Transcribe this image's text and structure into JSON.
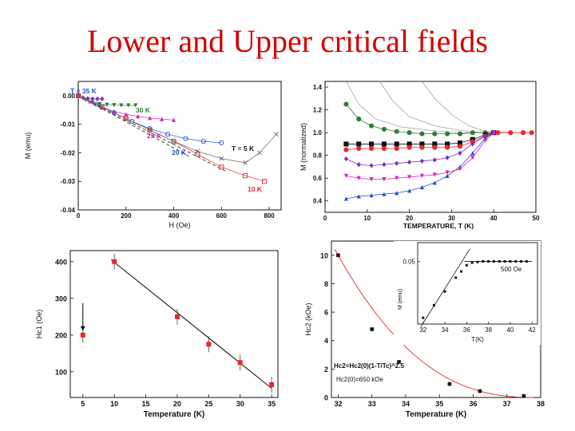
{
  "slide_title": "Lower and Upper critical fields",
  "colors": {
    "title": "#d40000",
    "red": "#e8262b",
    "green": "#2e7d32",
    "purple": "#7b2fbf",
    "blue": "#2b4bd6",
    "magenta": "#e020c0",
    "black": "#111111",
    "grey": "#888888"
  },
  "chart_data": [
    {
      "id": "magnetization-vs-field",
      "type": "scatter",
      "title": "",
      "xlabel": "H (Oe)",
      "ylabel": "M (emu)",
      "xlim": [
        0,
        850
      ],
      "ylim": [
        -0.04,
        0.005
      ],
      "xticks": [
        "0",
        "200",
        "400",
        "600",
        "800"
      ],
      "yticks": [
        "0.00",
        "-0.01",
        "-0.02",
        "-0.03",
        "-0.04"
      ],
      "series": [
        {
          "name": "T = 35 K",
          "color": "#7b2fbf",
          "marker": "diamond",
          "x": [
            0,
            20,
            40,
            60,
            80,
            100
          ],
          "y": [
            -0.0002,
            -0.0007,
            -0.001,
            -0.0011,
            -0.0011,
            -0.0011
          ]
        },
        {
          "name": "30 K",
          "color": "#2e7d32",
          "marker": "triangle-down",
          "x": [
            0,
            30,
            60,
            90,
            120,
            150,
            180,
            210,
            240
          ],
          "y": [
            0.0,
            -0.0015,
            -0.0025,
            -0.003,
            -0.0032,
            -0.0033,
            -0.0034,
            -0.0034,
            -0.0034
          ]
        },
        {
          "name": "25 K",
          "color": "#e020c0",
          "marker": "triangle",
          "x": [
            0,
            50,
            100,
            150,
            200,
            250,
            300,
            350,
            400
          ],
          "y": [
            0.0,
            -0.002,
            -0.004,
            -0.0055,
            -0.0065,
            -0.0072,
            -0.0078,
            -0.0082,
            -0.0085
          ]
        },
        {
          "name": "20 K",
          "color": "#2b4bd6",
          "marker": "circle-open",
          "x": [
            0,
            75,
            150,
            225,
            300,
            375,
            450,
            525,
            600
          ],
          "y": [
            0.0,
            -0.003,
            -0.006,
            -0.009,
            -0.0115,
            -0.0135,
            -0.015,
            -0.016,
            -0.0165
          ]
        },
        {
          "name": "10 K",
          "color": "#e8262b",
          "marker": "square-open",
          "x": [
            0,
            100,
            200,
            300,
            400,
            500,
            600,
            700,
            780
          ],
          "y": [
            0.0,
            -0.004,
            -0.008,
            -0.012,
            -0.016,
            -0.0205,
            -0.025,
            -0.028,
            -0.03
          ]
        },
        {
          "name": "T = 5 K",
          "color": "#666666",
          "marker": "cross",
          "x": [
            0,
            100,
            200,
            300,
            400,
            500,
            600,
            700,
            760,
            830
          ],
          "y": [
            0.0,
            -0.004,
            -0.008,
            -0.012,
            -0.016,
            -0.0195,
            -0.022,
            -0.0235,
            -0.02,
            -0.0135
          ]
        }
      ],
      "annotations": [
        {
          "text": "T = 35 K",
          "color": "#2b4bd6"
        },
        {
          "text": "30 K",
          "color": "#2e7d32"
        },
        {
          "text": "25 K",
          "color": "#e020c0"
        },
        {
          "text": "20 K",
          "color": "#2b4bd6"
        },
        {
          "text": "T = 5 K",
          "color": "#111111"
        },
        {
          "text": "10 K",
          "color": "#e8262b"
        }
      ]
    },
    {
      "id": "magnetization-vs-temperature",
      "type": "line",
      "title": "",
      "xlabel": "TEMPERATURE, T (K)",
      "ylabel": "M (normalized)",
      "xlim": [
        0,
        50
      ],
      "ylim": [
        0.3,
        1.45
      ],
      "xticks": [
        "0",
        "10",
        "20",
        "30",
        "40",
        "50"
      ],
      "yticks": [
        "0.4",
        "0.6",
        "0.8",
        "1.0",
        "1.2",
        "1.4"
      ],
      "series": [
        {
          "name": "green",
          "color": "#2e7d32",
          "x": [
            5,
            8,
            11,
            14,
            17,
            20,
            23,
            26,
            29,
            32,
            35,
            38,
            40
          ],
          "y": [
            1.25,
            1.12,
            1.06,
            1.03,
            1.01,
            1.0,
            0.99,
            0.99,
            0.99,
            0.99,
            1.0,
            1.0,
            1.0
          ]
        },
        {
          "name": "black",
          "color": "#111111",
          "x": [
            5,
            8,
            11,
            14,
            17,
            20,
            23,
            26,
            29,
            32,
            35,
            38,
            40
          ],
          "y": [
            0.9,
            0.9,
            0.9,
            0.9,
            0.9,
            0.9,
            0.9,
            0.9,
            0.9,
            0.91,
            0.94,
            0.98,
            1.0
          ]
        },
        {
          "name": "red",
          "color": "#e8262b",
          "x": [
            5,
            8,
            11,
            14,
            17,
            20,
            23,
            26,
            29,
            32,
            35,
            38,
            41,
            44,
            47,
            49
          ],
          "y": [
            0.85,
            0.86,
            0.86,
            0.86,
            0.86,
            0.87,
            0.87,
            0.87,
            0.87,
            0.88,
            0.92,
            0.97,
            1.0,
            1.0,
            1.0,
            1.0
          ]
        },
        {
          "name": "purple",
          "color": "#7b2fbf",
          "x": [
            5,
            8,
            11,
            14,
            17,
            20,
            23,
            26,
            29,
            32,
            35,
            38,
            40
          ],
          "y": [
            0.77,
            0.72,
            0.71,
            0.72,
            0.73,
            0.74,
            0.75,
            0.76,
            0.78,
            0.82,
            0.9,
            0.97,
            1.0
          ]
        },
        {
          "name": "blue",
          "color": "#2b4bd6",
          "x": [
            5,
            8,
            11,
            14,
            17,
            20,
            23,
            26,
            29,
            32,
            35,
            38,
            40
          ],
          "y": [
            0.42,
            0.44,
            0.45,
            0.46,
            0.47,
            0.49,
            0.52,
            0.56,
            0.62,
            0.7,
            0.82,
            0.95,
            1.0
          ]
        },
        {
          "name": "magenta",
          "color": "#e020c0",
          "x": [
            5,
            8,
            11,
            14,
            17,
            20,
            23,
            26,
            29,
            32,
            35,
            38,
            40
          ],
          "y": [
            0.62,
            0.6,
            0.59,
            0.59,
            0.6,
            0.61,
            0.62,
            0.63,
            0.65,
            0.68,
            0.78,
            0.93,
            1.0
          ]
        }
      ]
    },
    {
      "id": "hc1-vs-temperature",
      "type": "scatter",
      "title": "",
      "xlabel": "Temperature (K)",
      "ylabel": "Hc1 (Oe)",
      "xlim": [
        3,
        36
      ],
      "ylim": [
        30,
        430
      ],
      "xticks": [
        "5",
        "10",
        "15",
        "20",
        "25",
        "30",
        "35"
      ],
      "yticks": [
        "100",
        "200",
        "300",
        "400"
      ],
      "x": [
        5,
        10,
        20,
        25,
        30,
        35
      ],
      "y": [
        200,
        400,
        250,
        175,
        125,
        65
      ],
      "fit": {
        "x": [
          9.5,
          35
        ],
        "y": [
          405,
          55
        ]
      },
      "arrow": "points to 5 K data point"
    },
    {
      "id": "hc2-vs-temperature",
      "type": "scatter",
      "title": "",
      "xlabel": "Temperature (K)",
      "ylabel": "Hc2 (kOe)",
      "xlim": [
        31.8,
        38
      ],
      "ylim": [
        0,
        11
      ],
      "xticks": [
        "32",
        "33",
        "34",
        "35",
        "36",
        "37",
        "38"
      ],
      "yticks": [
        "0",
        "2",
        "4",
        "6",
        "8",
        "10"
      ],
      "x": [
        32.0,
        33.0,
        33.8,
        35.3,
        36.2,
        37.5
      ],
      "y": [
        10.0,
        4.8,
        2.5,
        0.95,
        0.45,
        0.1
      ],
      "fit_formula": "Hc2=Hc2(0)(1-T/Tc)^2.5",
      "fit_result": "Hc2(0)=650 kOe",
      "inset": {
        "type": "line",
        "xlabel": "T(K)",
        "ylabel": "M (emu)",
        "xticks": [
          "32",
          "34",
          "36",
          "38",
          "40",
          "42"
        ],
        "yticks": [
          "0.05"
        ],
        "xlim": [
          31.5,
          42.5
        ],
        "ylim": [
          0.0,
          0.065
        ],
        "label": "500 Oe",
        "x": [
          32,
          33,
          34,
          35,
          35.5,
          36,
          36.5,
          37,
          37.5,
          38,
          38.5,
          39,
          39.5,
          40,
          40.5,
          41,
          41.5
        ],
        "y": [
          0.005,
          0.015,
          0.026,
          0.037,
          0.042,
          0.047,
          0.049,
          0.0495,
          0.05,
          0.05,
          0.05,
          0.05,
          0.05,
          0.05,
          0.05,
          0.05,
          0.05
        ]
      }
    }
  ]
}
